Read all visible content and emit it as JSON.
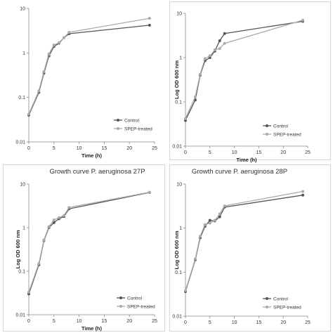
{
  "chart_data": [
    {
      "type": "line",
      "title": "",
      "xlabel": "Time (h)",
      "ylabel": "",
      "xlim": [
        0,
        25
      ],
      "ylim": [
        0.01,
        10
      ],
      "yscale": "log",
      "x_ticks": [
        "0",
        "5",
        "10",
        "15",
        "20",
        "25"
      ],
      "y_ticks": [
        "0.01",
        "0.1",
        "1",
        "10"
      ],
      "grid": false,
      "legend": "bottom-right",
      "series": [
        {
          "name": "Control",
          "color": "#555555",
          "x": [
            0,
            2,
            3,
            4,
            5,
            6,
            7,
            8,
            24
          ],
          "y": [
            0.04,
            0.13,
            0.35,
            0.85,
            1.4,
            1.65,
            2.2,
            2.7,
            4.2
          ]
        },
        {
          "name": "SPEP-treated",
          "color": "#aaaaaa",
          "x": [
            0,
            2,
            3,
            4,
            5,
            6,
            7,
            8,
            24
          ],
          "y": [
            0.042,
            0.14,
            0.38,
            0.95,
            1.5,
            1.7,
            2.2,
            2.9,
            6.0
          ]
        }
      ]
    },
    {
      "type": "line",
      "title": "",
      "xlabel": "Time (h)",
      "ylabel": "Log OD 600 nm",
      "xlim": [
        0,
        25
      ],
      "ylim": [
        0.01,
        10
      ],
      "yscale": "log",
      "x_ticks": [
        "0",
        "5",
        "10",
        "15",
        "20",
        "25"
      ],
      "y_ticks": [
        "0.01",
        "0.1",
        "1",
        "10"
      ],
      "grid": false,
      "legend": "bottom-right",
      "series": [
        {
          "name": "Control",
          "color": "#555555",
          "x": [
            0,
            2,
            3,
            4,
            5,
            6,
            7,
            8,
            24
          ],
          "y": [
            0.038,
            0.11,
            0.4,
            0.85,
            1.0,
            1.4,
            2.4,
            3.5,
            6.6
          ]
        },
        {
          "name": "SPEP-treated",
          "color": "#aaaaaa",
          "x": [
            0,
            2,
            3,
            4,
            5,
            6,
            7,
            8,
            24
          ],
          "y": [
            0.042,
            0.13,
            0.42,
            0.95,
            1.1,
            1.5,
            1.6,
            2.1,
            7.0
          ]
        }
      ]
    },
    {
      "type": "line",
      "title": "Growth curve P. aeruginosa 27P",
      "xlabel": "Time (h)",
      "ylabel": "Log OD 600 nm",
      "xlim": [
        0,
        25
      ],
      "ylim": [
        0.01,
        10
      ],
      "yscale": "log",
      "x_ticks": [
        "0",
        "5",
        "10",
        "15",
        "20",
        "25"
      ],
      "y_ticks": [
        "0.01",
        "0.1",
        "1",
        "10"
      ],
      "grid": false,
      "legend": "bottom-right",
      "series": [
        {
          "name": "Control",
          "color": "#555555",
          "x": [
            0,
            2,
            3,
            4,
            5,
            6,
            7,
            8,
            24
          ],
          "y": [
            0.03,
            0.14,
            0.5,
            1.0,
            1.3,
            1.6,
            1.8,
            2.7,
            6.4
          ]
        },
        {
          "name": "SPEP-treated",
          "color": "#aaaaaa",
          "x": [
            0,
            2,
            3,
            4,
            5,
            6,
            7,
            8,
            24
          ],
          "y": [
            0.033,
            0.15,
            0.52,
            1.05,
            1.5,
            1.7,
            1.9,
            2.9,
            6.5
          ]
        }
      ]
    },
    {
      "type": "line",
      "title": "Growth curve P. aeruginosa 28P",
      "xlabel": "",
      "ylabel": "Log OD 600 nm",
      "xlim": [
        0,
        25
      ],
      "ylim": [
        0.01,
        10
      ],
      "yscale": "log",
      "x_ticks": [
        "0",
        "5",
        "10",
        "15",
        "20",
        "25"
      ],
      "y_ticks": [
        "0.01",
        "0.1",
        "1",
        "10"
      ],
      "grid": false,
      "legend": "bottom-right",
      "series": [
        {
          "name": "Control",
          "color": "#555555",
          "x": [
            0,
            2,
            3,
            4,
            5,
            6,
            7,
            8,
            24
          ],
          "y": [
            0.036,
            0.19,
            0.6,
            1.1,
            1.5,
            1.45,
            1.8,
            3.0,
            5.6
          ]
        },
        {
          "name": "SPEP-treated",
          "color": "#aaaaaa",
          "x": [
            0,
            2,
            3,
            4,
            5,
            6,
            7,
            8,
            24
          ],
          "y": [
            0.038,
            0.2,
            0.65,
            1.2,
            1.3,
            1.5,
            2.1,
            3.2,
            6.8
          ]
        }
      ]
    }
  ]
}
